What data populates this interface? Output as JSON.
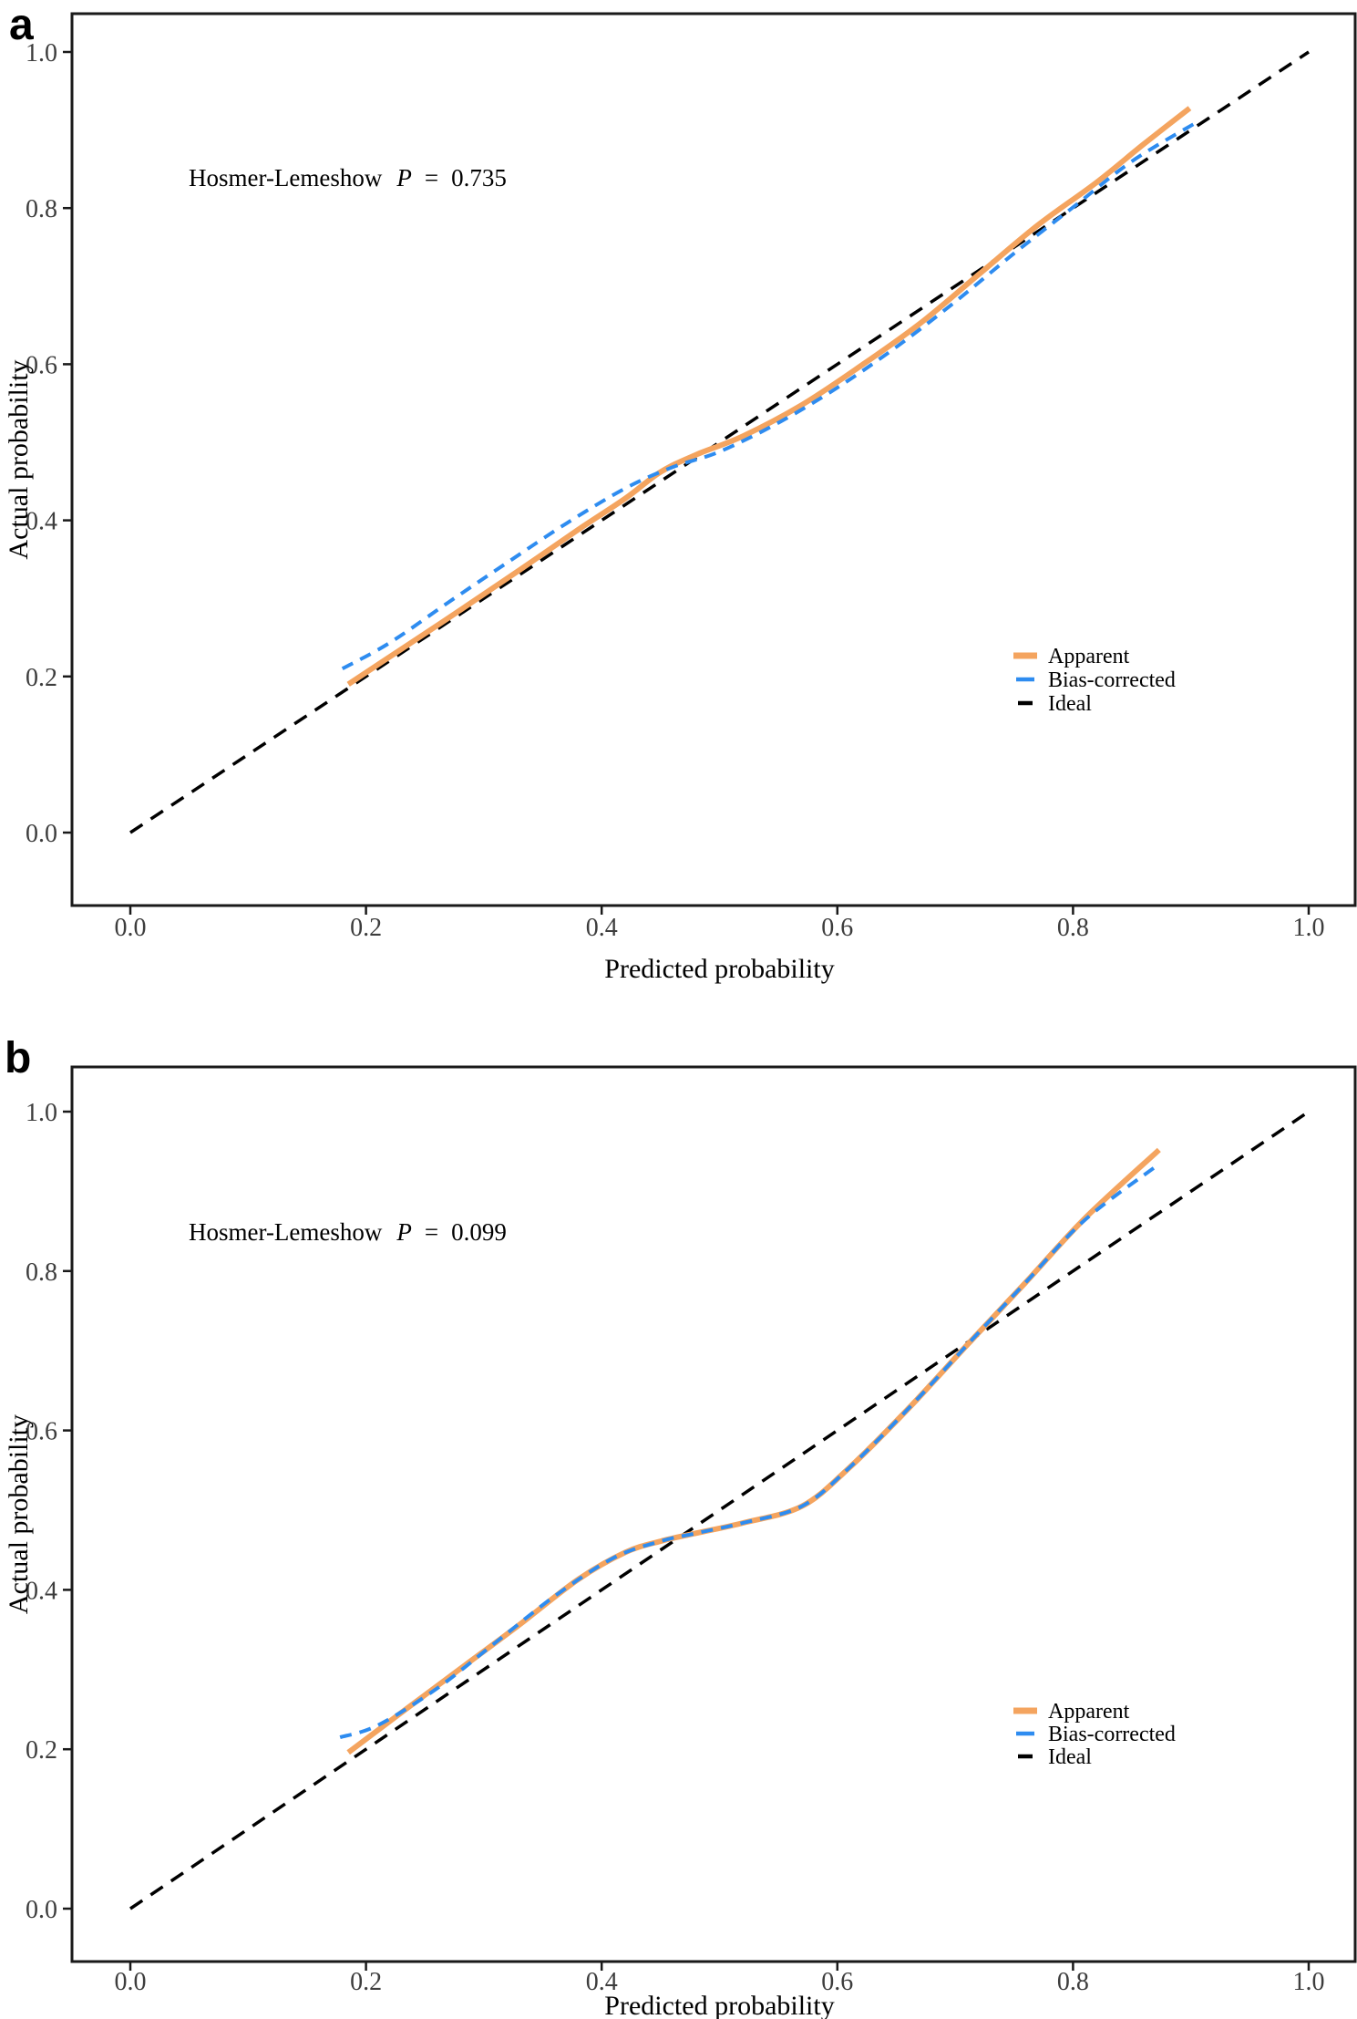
{
  "figure": {
    "background": "#ffffff"
  },
  "panels": [
    {
      "letter": "a"
    },
    {
      "letter": "b"
    }
  ],
  "chart_data": [
    {
      "type": "line",
      "panel": "a",
      "xlabel": "Predicted probability",
      "ylabel": "Actual probability",
      "xlim": [
        0,
        1
      ],
      "ylim": [
        0,
        1
      ],
      "xticks": [
        0.0,
        0.2,
        0.4,
        0.6,
        0.8,
        1.0
      ],
      "yticks": [
        0.0,
        0.2,
        0.4,
        0.6,
        0.8,
        1.0
      ],
      "grid": false,
      "annotation": {
        "text": "Hosmer-Lemeshow",
        "p": "P",
        "eq": "=",
        "value": "0.735"
      },
      "legend_position": "right-lower",
      "legend_entries": [
        "Apparent",
        "Bias-corrected",
        "Ideal"
      ],
      "series": [
        {
          "name": "Ideal",
          "color": "#000000",
          "dash": "dashed",
          "width": 3.5,
          "smooth": false,
          "points": [
            [
              0,
              0
            ],
            [
              1,
              1
            ]
          ]
        },
        {
          "name": "Apparent",
          "color": "#F4A45F",
          "dash": "solid",
          "width": 6,
          "smooth": true,
          "points": [
            [
              0.185,
              0.19
            ],
            [
              0.23,
              0.235
            ],
            [
              0.28,
              0.285
            ],
            [
              0.33,
              0.336
            ],
            [
              0.38,
              0.388
            ],
            [
              0.42,
              0.428
            ],
            [
              0.45,
              0.462
            ],
            [
              0.48,
              0.484
            ],
            [
              0.52,
              0.508
            ],
            [
              0.57,
              0.548
            ],
            [
              0.62,
              0.598
            ],
            [
              0.67,
              0.652
            ],
            [
              0.72,
              0.715
            ],
            [
              0.77,
              0.778
            ],
            [
              0.82,
              0.833
            ],
            [
              0.86,
              0.882
            ],
            [
              0.899,
              0.928
            ]
          ]
        },
        {
          "name": "Bias-corrected",
          "color": "#2E8CF0",
          "dash": "dashed",
          "width": 4,
          "smooth": true,
          "points": [
            [
              0.18,
              0.21
            ],
            [
              0.22,
              0.243
            ],
            [
              0.27,
              0.295
            ],
            [
              0.32,
              0.346
            ],
            [
              0.37,
              0.396
            ],
            [
              0.42,
              0.441
            ],
            [
              0.46,
              0.468
            ],
            [
              0.5,
              0.488
            ],
            [
              0.55,
              0.525
            ],
            [
              0.6,
              0.57
            ],
            [
              0.65,
              0.622
            ],
            [
              0.7,
              0.68
            ],
            [
              0.75,
              0.742
            ],
            [
              0.8,
              0.801
            ],
            [
              0.85,
              0.86
            ],
            [
              0.905,
              0.91
            ]
          ]
        }
      ]
    },
    {
      "type": "line",
      "panel": "b",
      "xlabel": "Predicted probability",
      "ylabel": "Actual probability",
      "xlim": [
        0,
        1
      ],
      "ylim": [
        0,
        1
      ],
      "xticks": [
        0.0,
        0.2,
        0.4,
        0.6,
        0.8,
        1.0
      ],
      "yticks": [
        0.0,
        0.2,
        0.4,
        0.6,
        0.8,
        1.0
      ],
      "grid": false,
      "annotation": {
        "text": "Hosmer-Lemeshow",
        "p": "P",
        "eq": "=",
        "value": "0.099"
      },
      "legend_position": "right-lower",
      "legend_entries": [
        "Apparent",
        "Bias-corrected",
        "Ideal"
      ],
      "series": [
        {
          "name": "Ideal",
          "color": "#000000",
          "dash": "dashed",
          "width": 3.5,
          "smooth": false,
          "points": [
            [
              0,
              0
            ],
            [
              1,
              1
            ]
          ]
        },
        {
          "name": "Apparent",
          "color": "#F4A45F",
          "dash": "solid",
          "width": 6,
          "smooth": true,
          "points": [
            [
              0.185,
              0.196
            ],
            [
              0.23,
              0.246
            ],
            [
              0.28,
              0.301
            ],
            [
              0.33,
              0.356
            ],
            [
              0.38,
              0.413
            ],
            [
              0.42,
              0.447
            ],
            [
              0.45,
              0.461
            ],
            [
              0.48,
              0.471
            ],
            [
              0.52,
              0.484
            ],
            [
              0.57,
              0.505
            ],
            [
              0.61,
              0.553
            ],
            [
              0.66,
              0.627
            ],
            [
              0.71,
              0.707
            ],
            [
              0.76,
              0.786
            ],
            [
              0.81,
              0.866
            ],
            [
              0.873,
              0.952
            ]
          ]
        },
        {
          "name": "Bias-corrected",
          "color": "#2E8CF0",
          "dash": "dashed",
          "width": 4,
          "smooth": true,
          "points": [
            [
              0.178,
              0.215
            ],
            [
              0.21,
              0.23
            ],
            [
              0.26,
              0.276
            ],
            [
              0.31,
              0.334
            ],
            [
              0.36,
              0.392
            ],
            [
              0.41,
              0.44
            ],
            [
              0.45,
              0.461
            ],
            [
              0.48,
              0.471
            ],
            [
              0.52,
              0.484
            ],
            [
              0.57,
              0.505
            ],
            [
              0.61,
              0.553
            ],
            [
              0.66,
              0.627
            ],
            [
              0.71,
              0.707
            ],
            [
              0.76,
              0.786
            ],
            [
              0.81,
              0.864
            ],
            [
              0.871,
              0.932
            ]
          ]
        }
      ]
    }
  ]
}
